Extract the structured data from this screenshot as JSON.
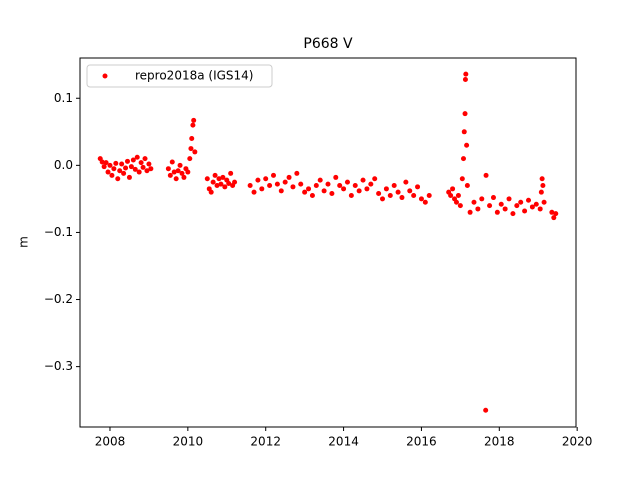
{
  "chart_data": {
    "type": "scatter",
    "title": "P668 V",
    "y_label": "m",
    "xlim": [
      2007.23,
      2019.97
    ],
    "xticks": [
      2008,
      2010,
      2012,
      2014,
      2016,
      2018,
      2020
    ],
    "ylim": [
      -0.39,
      0.16
    ],
    "yticks": [
      {
        "value": -0.3,
        "label": "−0.3"
      },
      {
        "value": -0.2,
        "label": "−0.2"
      },
      {
        "value": -0.1,
        "label": "−0.1"
      },
      {
        "value": 0,
        "label": "0.0"
      },
      0.1
    ],
    "legend_position": "upper left",
    "series": [
      {
        "name": "repro2018a (IGS14)",
        "color": "#ff0000",
        "x": [
          2007.75,
          2007.8,
          2007.85,
          2007.9,
          2007.95,
          2008,
          2008.05,
          2008.1,
          2008.15,
          2008.2,
          2008.25,
          2008.3,
          2008.35,
          2008.4,
          2008.45,
          2008.5,
          2008.55,
          2008.6,
          2008.65,
          2008.7,
          2008.75,
          2008.8,
          2008.85,
          2008.9,
          2008.95,
          2009,
          2009.05,
          2009.5,
          2009.55,
          2009.6,
          2009.65,
          2009.7,
          2009.75,
          2009.8,
          2009.85,
          2009.9,
          2009.95,
          2010,
          2010.05,
          2010.08,
          2010.1,
          2010.13,
          2010.15,
          2010.18,
          2010.5,
          2010.55,
          2010.6,
          2010.65,
          2010.7,
          2010.75,
          2010.8,
          2010.85,
          2010.9,
          2010.95,
          2011,
          2011.05,
          2011.1,
          2011.15,
          2011.2,
          2011.6,
          2011.7,
          2011.8,
          2011.9,
          2012,
          2012.1,
          2012.2,
          2012.3,
          2012.4,
          2012.5,
          2012.6,
          2012.7,
          2012.8,
          2012.9,
          2013,
          2013.1,
          2013.2,
          2013.3,
          2013.4,
          2013.5,
          2013.6,
          2013.7,
          2013.8,
          2013.9,
          2014,
          2014.1,
          2014.2,
          2014.3,
          2014.4,
          2014.5,
          2014.6,
          2014.7,
          2014.8,
          2014.9,
          2015,
          2015.1,
          2015.2,
          2015.3,
          2015.4,
          2015.5,
          2015.6,
          2015.7,
          2015.8,
          2015.9,
          2016,
          2016.1,
          2016.2,
          2016.7,
          2016.75,
          2016.8,
          2016.85,
          2016.9,
          2016.95,
          2017,
          2017.05,
          2017.08,
          2017.1,
          2017.12,
          2017.13,
          2017.14,
          2017.16,
          2017.18,
          2017.25,
          2017.35,
          2017.45,
          2017.55,
          2017.65,
          2017.66,
          2017.75,
          2017.85,
          2017.95,
          2018.05,
          2018.15,
          2018.25,
          2018.35,
          2018.45,
          2018.55,
          2018.65,
          2018.75,
          2018.85,
          2018.95,
          2019.05,
          2019.08,
          2019.1,
          2019.12,
          2019.15,
          2019.35,
          2019.4,
          2019.45
        ],
        "values": [
          0.01,
          0.005,
          -0.002,
          0.004,
          -0.01,
          0,
          -0.015,
          -0.005,
          0.003,
          -0.02,
          -0.008,
          0.002,
          -0.012,
          -0.004,
          0.006,
          -0.018,
          -0.002,
          0.008,
          -0.006,
          0.012,
          -0.01,
          0.004,
          -0.003,
          0.01,
          -0.008,
          0.002,
          -0.005,
          -0.005,
          -0.015,
          0.005,
          -0.01,
          -0.02,
          -0.008,
          0,
          -0.012,
          -0.018,
          -0.005,
          -0.01,
          0.01,
          0.025,
          0.04,
          0.06,
          0.067,
          0.02,
          -0.02,
          -0.035,
          -0.04,
          -0.025,
          -0.015,
          -0.03,
          -0.02,
          -0.028,
          -0.018,
          -0.032,
          -0.022,
          -0.027,
          -0.012,
          -0.03,
          -0.025,
          -0.03,
          -0.04,
          -0.022,
          -0.035,
          -0.02,
          -0.03,
          -0.015,
          -0.028,
          -0.038,
          -0.025,
          -0.018,
          -0.032,
          -0.012,
          -0.028,
          -0.04,
          -0.035,
          -0.045,
          -0.03,
          -0.022,
          -0.038,
          -0.028,
          -0.042,
          -0.018,
          -0.03,
          -0.035,
          -0.025,
          -0.045,
          -0.03,
          -0.038,
          -0.022,
          -0.035,
          -0.028,
          -0.02,
          -0.042,
          -0.05,
          -0.035,
          -0.045,
          -0.03,
          -0.04,
          -0.048,
          -0.025,
          -0.038,
          -0.045,
          -0.032,
          -0.05,
          -0.055,
          -0.045,
          -0.04,
          -0.045,
          -0.035,
          -0.05,
          -0.055,
          -0.045,
          -0.06,
          -0.02,
          0.01,
          0.05,
          0.077,
          0.128,
          0.136,
          0.03,
          -0.03,
          -0.07,
          -0.055,
          -0.065,
          -0.05,
          -0.365,
          -0.015,
          -0.06,
          -0.048,
          -0.07,
          -0.058,
          -0.065,
          -0.05,
          -0.072,
          -0.06,
          -0.055,
          -0.068,
          -0.052,
          -0.062,
          -0.058,
          -0.065,
          -0.04,
          -0.02,
          -0.03,
          -0.055,
          -0.07,
          -0.078,
          -0.072
        ]
      }
    ]
  }
}
